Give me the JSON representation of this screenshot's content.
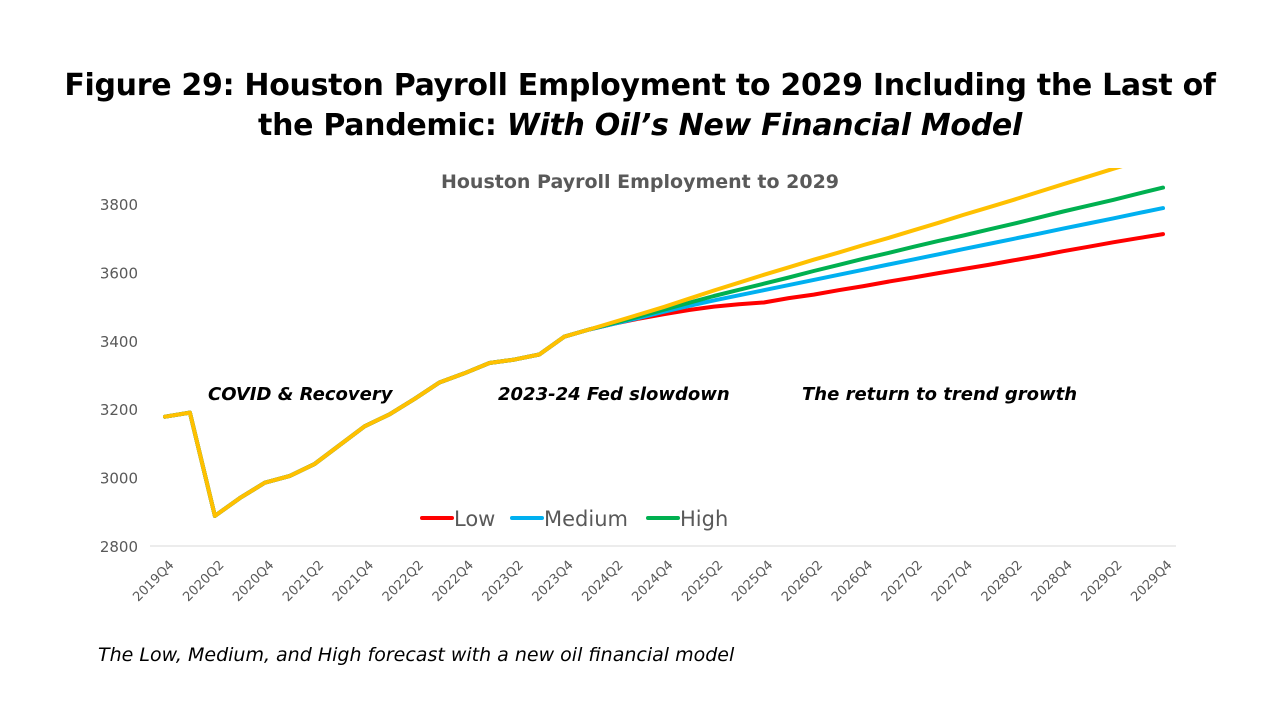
{
  "figure": {
    "title_line1": "Figure 29: Houston Payroll Employment to 2029 Including the Last of",
    "title_line2_plain": "the Pandemic: ",
    "title_line2_italic": "With Oil’s New Financial Model",
    "caption": "The Low, Medium, and High forecast with a new oil financial model"
  },
  "chart_data": {
    "type": "line",
    "title": "Houston Payroll Employment to 2029",
    "xlabel": "",
    "ylabel": "",
    "ylim": [
      2800,
      3900
    ],
    "yticks": [
      2800,
      3000,
      3200,
      3400,
      3600,
      3800
    ],
    "grid": false,
    "legend_placement": "bottom-center",
    "x": [
      "2019Q4",
      "2020Q1",
      "2020Q2",
      "2020Q3",
      "2020Q4",
      "2021Q1",
      "2021Q2",
      "2021Q3",
      "2021Q4",
      "2022Q1",
      "2022Q2",
      "2022Q3",
      "2022Q4",
      "2023Q1",
      "2023Q2",
      "2023Q3",
      "2023Q4",
      "2024Q1",
      "2024Q2",
      "2024Q3",
      "2024Q4",
      "2025Q1",
      "2025Q2",
      "2025Q3",
      "2025Q4",
      "2026Q1",
      "2026Q2",
      "2026Q3",
      "2026Q4",
      "2027Q1",
      "2027Q2",
      "2027Q3",
      "2027Q4",
      "2028Q1",
      "2028Q2",
      "2028Q3",
      "2028Q4",
      "2029Q1",
      "2029Q2",
      "2029Q3",
      "2029Q4"
    ],
    "x_tick_labels": [
      "2019Q4",
      "2020Q2",
      "2020Q4",
      "2021Q2",
      "2021Q4",
      "2022Q2",
      "2022Q4",
      "2023Q2",
      "2023Q4",
      "2024Q2",
      "2024Q4",
      "2025Q2",
      "2025Q4",
      "2026Q2",
      "2026Q4",
      "2027Q2",
      "2027Q4",
      "2028Q2",
      "2028Q4",
      "2029Q2",
      "2029Q4"
    ],
    "series": [
      {
        "name": "Low",
        "color": "#ff0000",
        "values": [
          3178,
          3190,
          2888,
          2940,
          2985,
          3005,
          3040,
          3095,
          3150,
          3185,
          3230,
          3278,
          3305,
          3335,
          3345,
          3360,
          3412,
          3433,
          3450,
          3465,
          3478,
          3490,
          3500,
          3507,
          3512,
          3525,
          3535,
          3548,
          3560,
          3573,
          3585,
          3598,
          3610,
          3622,
          3635,
          3648,
          3662,
          3675,
          3688,
          3700,
          3712
        ]
      },
      {
        "name": "Medium",
        "color": "#00b0f0",
        "values": [
          3178,
          3190,
          2888,
          2940,
          2985,
          3005,
          3040,
          3095,
          3150,
          3185,
          3230,
          3278,
          3305,
          3335,
          3345,
          3360,
          3412,
          3433,
          3450,
          3467,
          3485,
          3502,
          3518,
          3533,
          3548,
          3563,
          3578,
          3593,
          3608,
          3623,
          3638,
          3653,
          3668,
          3683,
          3698,
          3713,
          3728,
          3743,
          3758,
          3773,
          3788
        ]
      },
      {
        "name": "High",
        "color": "#00b050",
        "values": [
          3178,
          3190,
          2888,
          2940,
          2985,
          3005,
          3040,
          3095,
          3150,
          3185,
          3230,
          3278,
          3305,
          3335,
          3345,
          3360,
          3412,
          3433,
          3452,
          3471,
          3491,
          3511,
          3531,
          3549,
          3567,
          3585,
          3604,
          3622,
          3640,
          3657,
          3675,
          3692,
          3708,
          3725,
          3742,
          3760,
          3778,
          3795,
          3812,
          3830,
          3848
        ]
      },
      {
        "name": "",
        "color": "#ffc000",
        "values": [
          3178,
          3190,
          2888,
          2940,
          2985,
          3005,
          3040,
          3095,
          3150,
          3185,
          3230,
          3278,
          3305,
          3335,
          3345,
          3360,
          3412,
          3433,
          3455,
          3477,
          3499,
          3523,
          3547,
          3570,
          3593,
          3615,
          3637,
          3658,
          3680,
          3701,
          3723,
          3745,
          3768,
          3790,
          3812,
          3835,
          3858,
          3880,
          3903,
          3925,
          3948
        ]
      }
    ],
    "annotations": [
      "COVID & Recovery",
      "2023-24 Fed slowdown",
      "The return to trend growth"
    ]
  }
}
